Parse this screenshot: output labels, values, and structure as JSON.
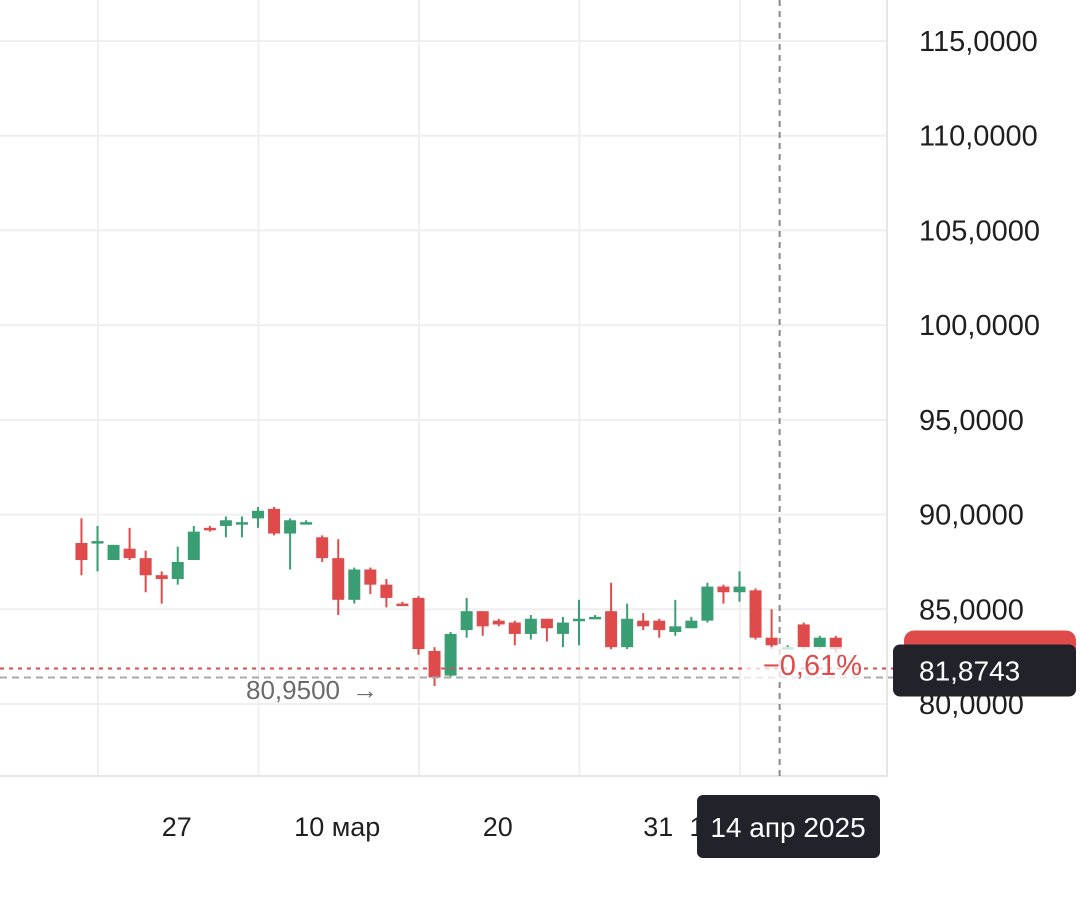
{
  "chart_data": {
    "type": "candlestick",
    "ylim": [
      75.0,
      118.0
    ],
    "y_ticks": [
      "115,0000",
      "110,0000",
      "105,0000",
      "100,0000",
      "95,0000",
      "90,0000",
      "85,0000",
      "80,0000"
    ],
    "y_tick_values": [
      115,
      110,
      105,
      100,
      95,
      90,
      85,
      80
    ],
    "x_ticks": [
      {
        "label": "27",
        "day": -5
      },
      {
        "label": "10 мар",
        "day": 5
      },
      {
        "label": "20",
        "day": 15
      },
      {
        "label": "31",
        "day": 25
      }
    ],
    "grid": true,
    "colors": {
      "up": "#3a9e74",
      "down": "#df4a4a",
      "grid": "#efefef",
      "badge": "#21222a"
    },
    "candles": [
      {
        "day": -11,
        "open": 88.5,
        "high": 89.8,
        "low": 86.8,
        "close": 87.6
      },
      {
        "day": -10,
        "open": 88.6,
        "high": 89.4,
        "low": 87.0,
        "close": 88.6
      },
      {
        "day": -9,
        "open": 87.6,
        "high": 88.4,
        "low": 87.6,
        "close": 88.4
      },
      {
        "day": -8,
        "open": 88.2,
        "high": 89.3,
        "low": 87.6,
        "close": 87.7
      },
      {
        "day": -7,
        "open": 87.7,
        "high": 88.1,
        "low": 85.9,
        "close": 86.8
      },
      {
        "day": -6,
        "open": 86.8,
        "high": 87.0,
        "low": 85.3,
        "close": 86.6
      },
      {
        "day": -5,
        "open": 86.6,
        "high": 88.3,
        "low": 86.3,
        "close": 87.5
      },
      {
        "day": -4,
        "open": 87.6,
        "high": 89.4,
        "low": 87.6,
        "close": 89.1
      },
      {
        "day": -3,
        "open": 89.3,
        "high": 89.4,
        "low": 89.1,
        "close": 89.2
      },
      {
        "day": -2,
        "open": 89.4,
        "high": 89.9,
        "low": 88.8,
        "close": 89.7
      },
      {
        "day": -1,
        "open": 89.5,
        "high": 89.9,
        "low": 88.8,
        "close": 89.6
      },
      {
        "day": 0,
        "open": 89.8,
        "high": 90.4,
        "low": 89.3,
        "close": 90.2
      },
      {
        "day": 1,
        "open": 90.3,
        "high": 90.4,
        "low": 88.9,
        "close": 89.0
      },
      {
        "day": 2,
        "open": 89.0,
        "high": 89.8,
        "low": 87.1,
        "close": 89.7
      },
      {
        "day": 3,
        "open": 89.6,
        "high": 89.7,
        "low": 89.5,
        "close": 89.6
      },
      {
        "day": 4,
        "open": 88.8,
        "high": 88.9,
        "low": 87.5,
        "close": 87.7
      },
      {
        "day": 5,
        "open": 87.7,
        "high": 88.7,
        "low": 84.7,
        "close": 85.5
      },
      {
        "day": 6,
        "open": 85.5,
        "high": 87.2,
        "low": 85.3,
        "close": 87.1
      },
      {
        "day": 7,
        "open": 87.1,
        "high": 87.2,
        "low": 85.8,
        "close": 86.3
      },
      {
        "day": 8,
        "open": 86.3,
        "high": 86.6,
        "low": 85.1,
        "close": 85.6
      },
      {
        "day": 9,
        "open": 85.3,
        "high": 85.4,
        "low": 85.2,
        "close": 85.2
      },
      {
        "day": 10,
        "open": 85.6,
        "high": 85.7,
        "low": 82.6,
        "close": 82.9
      },
      {
        "day": 11,
        "open": 82.8,
        "high": 83.0,
        "low": 80.95,
        "close": 81.4
      },
      {
        "day": 12,
        "open": 81.5,
        "high": 83.8,
        "low": 81.4,
        "close": 83.7
      },
      {
        "day": 13,
        "open": 83.9,
        "high": 85.6,
        "low": 83.5,
        "close": 84.9
      },
      {
        "day": 14,
        "open": 84.9,
        "high": 84.9,
        "low": 83.6,
        "close": 84.1
      },
      {
        "day": 15,
        "open": 84.4,
        "high": 84.5,
        "low": 84.1,
        "close": 84.2
      },
      {
        "day": 16,
        "open": 84.3,
        "high": 84.4,
        "low": 83.1,
        "close": 83.7
      },
      {
        "day": 17,
        "open": 83.7,
        "high": 84.7,
        "low": 83.4,
        "close": 84.5
      },
      {
        "day": 18,
        "open": 84.5,
        "high": 84.5,
        "low": 83.3,
        "close": 84.0
      },
      {
        "day": 19,
        "open": 83.7,
        "high": 84.6,
        "low": 83.0,
        "close": 84.3
      },
      {
        "day": 20,
        "open": 84.4,
        "high": 85.5,
        "low": 83.1,
        "close": 84.5
      },
      {
        "day": 21,
        "open": 84.6,
        "high": 84.7,
        "low": 84.5,
        "close": 84.6
      },
      {
        "day": 22,
        "open": 84.9,
        "high": 86.4,
        "low": 82.9,
        "close": 83.0
      },
      {
        "day": 23,
        "open": 83.0,
        "high": 85.3,
        "low": 82.9,
        "close": 84.5
      },
      {
        "day": 24,
        "open": 84.4,
        "high": 84.8,
        "low": 83.9,
        "close": 84.1
      },
      {
        "day": 25,
        "open": 84.4,
        "high": 84.5,
        "low": 83.5,
        "close": 83.9
      },
      {
        "day": 26,
        "open": 83.8,
        "high": 85.5,
        "low": 83.6,
        "close": 84.1
      },
      {
        "day": 27,
        "open": 84.0,
        "high": 84.6,
        "low": 84.0,
        "close": 84.4
      },
      {
        "day": 28,
        "open": 84.4,
        "high": 86.4,
        "low": 84.3,
        "close": 86.2
      },
      {
        "day": 29,
        "open": 86.2,
        "high": 86.3,
        "low": 85.3,
        "close": 85.9
      },
      {
        "day": 30,
        "open": 85.9,
        "high": 87.0,
        "low": 85.4,
        "close": 86.2
      },
      {
        "day": 31,
        "open": 86.0,
        "high": 86.1,
        "low": 83.4,
        "close": 83.5
      },
      {
        "day": 32,
        "open": 83.5,
        "high": 85.0,
        "low": 82.9,
        "close": 83.1
      },
      {
        "day": 33,
        "open": 83.0,
        "high": 83.1,
        "low": 82.9,
        "close": 83.0
      },
      {
        "day": 34,
        "open": 84.2,
        "high": 84.3,
        "low": 82.9,
        "close": 83.0
      },
      {
        "day": 35,
        "open": 83.0,
        "high": 83.6,
        "low": 82.9,
        "close": 83.5
      },
      {
        "day": 36,
        "open": 83.5,
        "high": 83.6,
        "low": 82.7,
        "close": 82.9
      }
    ],
    "annotations": {
      "low_label": "80,9500",
      "low_arrow": "→",
      "low_value": 80.95,
      "change_pct": "−0,61%",
      "change_value": 82.8,
      "last_price": "81,8743",
      "last_price_value": 81.8743,
      "reference_value": 81.4,
      "crosshair_day": 32.5,
      "crosshair_date": "14 апр 2025",
      "hidden_tick_label": "1"
    }
  }
}
